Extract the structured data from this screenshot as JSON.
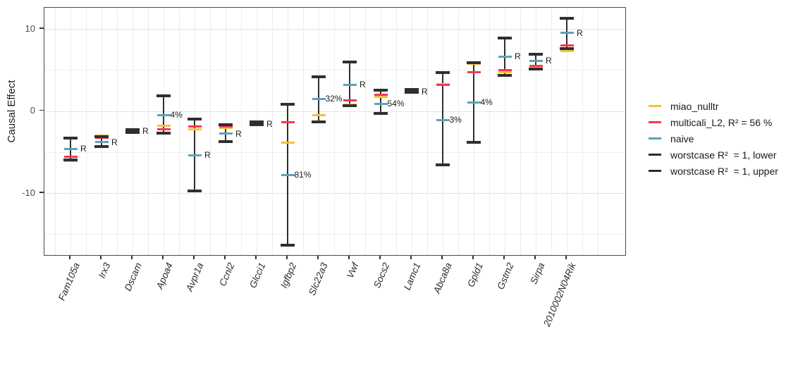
{
  "chart_data": {
    "type": "errorbar",
    "title": "",
    "xlabel": "",
    "ylabel": "Causal Effect",
    "y_axis": {
      "tick_values": [
        10,
        0,
        -10
      ],
      "minor_gridlines": [
        5,
        -5,
        -15
      ],
      "range": [
        -17.7,
        12.6
      ]
    },
    "categories": [
      "Fam105a",
      "Irx3",
      "Dscam",
      "Apoa4",
      "Avpr1a",
      "Ccnl2",
      "Glcci1",
      "Igfbp2",
      "Slc22a3",
      "Vwf",
      "Socs2",
      "Lamc1",
      "Abca8a",
      "Gpld1",
      "Gstm2",
      "Sirpa",
      "2010002N04Rik"
    ],
    "series": [
      {
        "name": "miao_nulltr",
        "role": "tick",
        "color": "#FBBE3E",
        "values": [
          -6.1,
          -3.0,
          -2.4,
          -1.8,
          -2.2,
          -2.1,
          -1.45,
          -3.85,
          -0.55,
          0.75,
          1.7,
          2.47,
          3.3,
          5.75,
          4.75,
          5.2,
          7.3
        ]
      },
      {
        "name": "multicali_L2, R² = 56 %",
        "role": "tick",
        "color": "#F23B4C",
        "values": [
          -5.6,
          -3.3,
          -2.5,
          -2.2,
          -1.85,
          -1.9,
          -1.5,
          -1.4,
          -1.3,
          1.25,
          2.0,
          2.45,
          3.2,
          4.7,
          5.0,
          5.5,
          8.0
        ]
      },
      {
        "name": "naive",
        "role": "tick",
        "color": "#5EA2B8",
        "values": [
          -4.6,
          -3.8,
          -2.45,
          -0.5,
          -5.4,
          -2.75,
          -1.55,
          -7.8,
          1.5,
          3.2,
          0.9,
          2.4,
          -1.1,
          1.05,
          6.65,
          6.1,
          9.5
        ]
      },
      {
        "name": "worstcase R² = 1, lower",
        "role": "bound-lower",
        "color": "#2E2E2E",
        "values": [
          -6.0,
          -4.3,
          -2.6,
          -2.7,
          -9.7,
          -3.7,
          -1.7,
          -16.35,
          -1.3,
          0.65,
          -0.3,
          2.3,
          -6.55,
          -3.8,
          4.3,
          5.1,
          7.6
        ]
      },
      {
        "name": "worstcase R² = 1, upper",
        "role": "bound-upper",
        "color": "#2E2E2E",
        "values": [
          -3.3,
          -3.1,
          -2.3,
          1.85,
          -1.0,
          -1.7,
          -1.3,
          0.8,
          4.15,
          6.0,
          2.5,
          2.62,
          4.7,
          5.85,
          8.9,
          6.9,
          11.3
        ]
      }
    ],
    "point_labels": [
      "R",
      "R",
      "R",
      "4%",
      "R",
      "R",
      "R",
      "81%",
      "32%",
      "R",
      "54%",
      "R",
      "3%",
      "4%",
      "R",
      "R",
      "R"
    ],
    "point_label_anchor_series": "naive",
    "grid": true,
    "legend_position": "right"
  },
  "legend": {
    "entries": [
      {
        "label": "miao_nulltr",
        "color": "#FBBE3E"
      },
      {
        "label": "multicali_L2, R² = 56 %",
        "color": "#F23B4C"
      },
      {
        "label": "naive",
        "color": "#5EA2B8"
      },
      {
        "label": "worstcase R²  = 1, lower",
        "color": "#2E2E2E"
      },
      {
        "label": "worstcase R²  = 1, upper",
        "color": "#2E2E2E"
      }
    ]
  },
  "colors": {
    "errorbar": "#2f2f2f",
    "grid_major": "#e3e3e3",
    "grid_minor": "#f0f0f0",
    "panel_border": "#4b4b4b",
    "axis_text": "#4d4d4d"
  }
}
